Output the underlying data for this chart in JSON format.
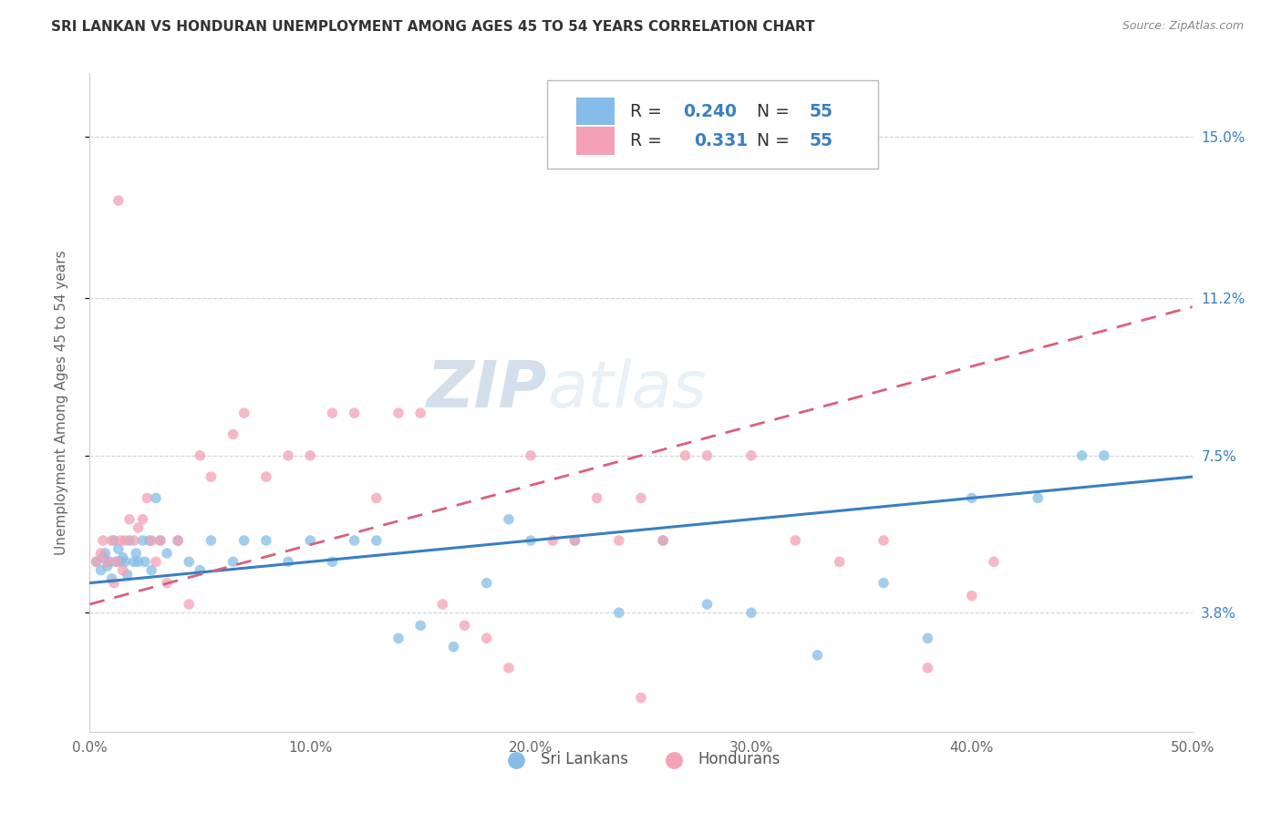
{
  "title": "SRI LANKAN VS HONDURAN UNEMPLOYMENT AMONG AGES 45 TO 54 YEARS CORRELATION CHART",
  "source": "Source: ZipAtlas.com",
  "ylabel": "Unemployment Among Ages 45 to 54 years",
  "ytick_labels": [
    "3.8%",
    "7.5%",
    "11.2%",
    "15.0%"
  ],
  "ytick_vals": [
    3.8,
    7.5,
    11.2,
    15.0
  ],
  "xmin": 0.0,
  "xmax": 50.0,
  "ymin": 1.0,
  "ymax": 16.5,
  "sri_lankans_color": "#85bde8",
  "hondurans_color": "#f4a0b5",
  "sri_lankans_line_color": "#3a7fc1",
  "hondurans_line_color": "#d9607a",
  "R_sri": 0.24,
  "N_sri": 55,
  "R_hon": 0.331,
  "N_hon": 55,
  "background_color": "#ffffff",
  "grid_color": "#cccccc",
  "watermark_color": "#c8d8e8",
  "sri_lankans_x": [
    0.3,
    0.5,
    0.6,
    0.7,
    0.8,
    0.9,
    1.0,
    1.1,
    1.2,
    1.3,
    1.4,
    1.5,
    1.6,
    1.7,
    1.8,
    2.0,
    2.1,
    2.2,
    2.4,
    2.5,
    2.7,
    2.8,
    3.0,
    3.2,
    3.5,
    4.0,
    4.5,
    5.0,
    5.5,
    6.5,
    7.0,
    8.0,
    9.0,
    10.0,
    11.0,
    12.0,
    13.0,
    14.0,
    15.0,
    16.5,
    18.0,
    19.0,
    20.0,
    22.0,
    24.0,
    26.0,
    28.0,
    30.0,
    33.0,
    36.0,
    38.0,
    40.0,
    43.0,
    45.0,
    46.0
  ],
  "sri_lankans_y": [
    5.0,
    4.8,
    5.1,
    5.2,
    4.9,
    5.0,
    4.6,
    5.5,
    5.0,
    5.3,
    5.0,
    5.1,
    5.0,
    4.7,
    5.5,
    5.0,
    5.2,
    5.0,
    5.5,
    5.0,
    5.5,
    4.8,
    6.5,
    5.5,
    5.2,
    5.5,
    5.0,
    4.8,
    5.5,
    5.0,
    5.5,
    5.5,
    5.0,
    5.5,
    5.0,
    5.5,
    5.5,
    3.2,
    3.5,
    3.0,
    4.5,
    6.0,
    5.5,
    5.5,
    3.8,
    5.5,
    4.0,
    3.8,
    2.8,
    4.5,
    3.2,
    6.5,
    6.5,
    7.5,
    7.5
  ],
  "hondurans_x": [
    0.3,
    0.5,
    0.6,
    0.8,
    1.0,
    1.1,
    1.2,
    1.3,
    1.4,
    1.5,
    1.6,
    1.8,
    2.0,
    2.2,
    2.4,
    2.6,
    2.8,
    3.0,
    3.2,
    3.5,
    4.0,
    4.5,
    5.0,
    5.5,
    6.5,
    7.0,
    8.0,
    9.0,
    10.0,
    11.0,
    12.0,
    13.0,
    14.0,
    15.0,
    16.0,
    17.0,
    18.0,
    19.0,
    20.0,
    21.0,
    22.0,
    23.0,
    24.0,
    25.0,
    26.0,
    27.0,
    28.0,
    30.0,
    32.0,
    34.0,
    36.0,
    38.0,
    40.0,
    41.0,
    25.0
  ],
  "hondurans_y": [
    5.0,
    5.2,
    5.5,
    5.0,
    5.5,
    4.5,
    5.0,
    13.5,
    5.5,
    4.8,
    5.5,
    6.0,
    5.5,
    5.8,
    6.0,
    6.5,
    5.5,
    5.0,
    5.5,
    4.5,
    5.5,
    4.0,
    7.5,
    7.0,
    8.0,
    8.5,
    7.0,
    7.5,
    7.5,
    8.5,
    8.5,
    6.5,
    8.5,
    8.5,
    4.0,
    3.5,
    3.2,
    2.5,
    7.5,
    5.5,
    5.5,
    6.5,
    5.5,
    6.5,
    5.5,
    7.5,
    7.5,
    7.5,
    5.5,
    5.0,
    5.5,
    2.5,
    4.2,
    5.0,
    1.8
  ]
}
